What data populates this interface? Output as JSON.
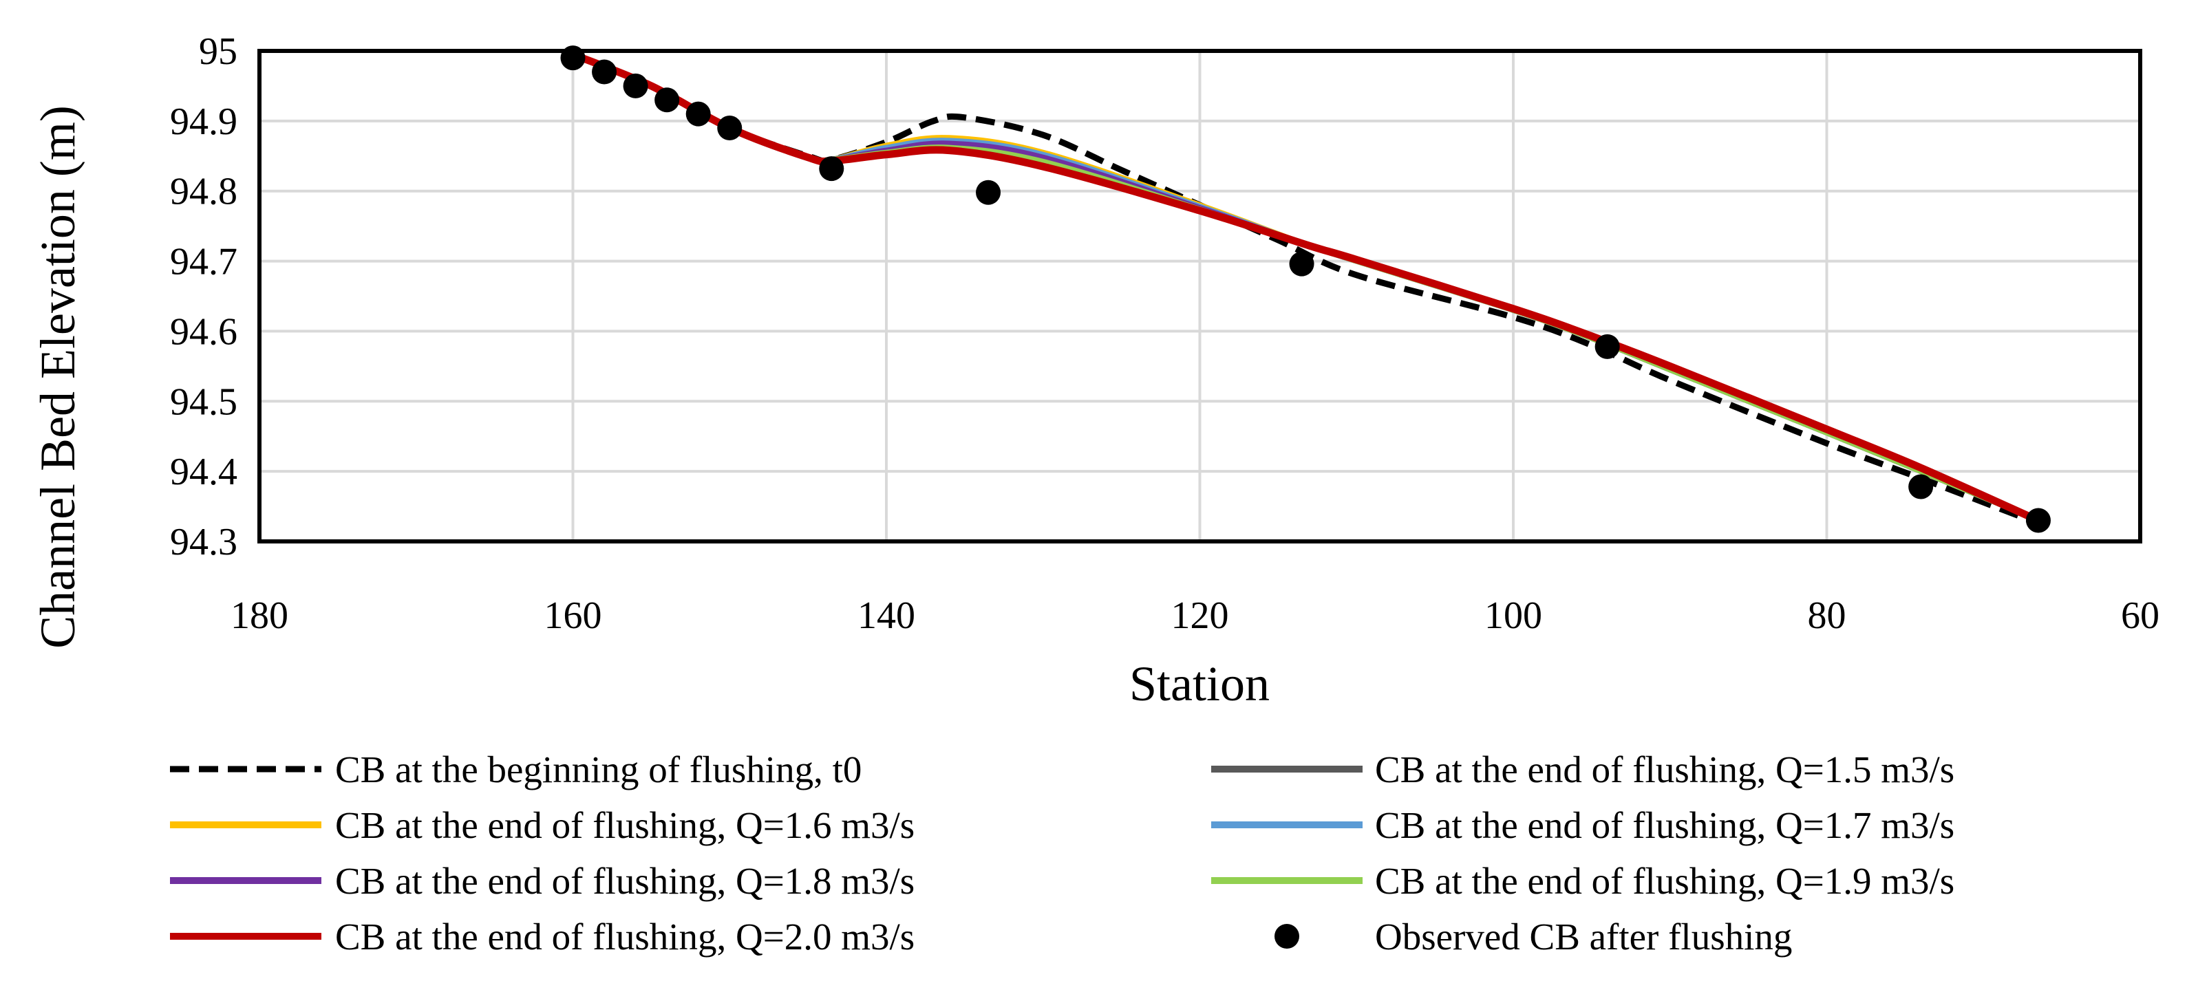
{
  "chart_data": {
    "type": "line",
    "title": "",
    "xlabel": "Station",
    "ylabel": "Channel Bed Elevation (m)",
    "xlim": [
      180,
      60
    ],
    "ylim": [
      94.3,
      95
    ],
    "x_ticks": [
      180,
      160,
      140,
      120,
      100,
      80,
      60
    ],
    "y_ticks": [
      "94.3",
      "94.4",
      "94.5",
      "94.6",
      "94.7",
      "94.8",
      "94.9",
      "95"
    ],
    "grid": true,
    "legend_position": "bottom",
    "series": [
      {
        "name": "CB at the beginning of flushing, t0",
        "style": "dashed",
        "color": "#000000",
        "points": [
          [
            160,
            94.995
          ],
          [
            155,
            94.95
          ],
          [
            150,
            94.89
          ],
          [
            145,
            94.85
          ],
          [
            143.5,
            94.845
          ],
          [
            140,
            94.87
          ],
          [
            137,
            94.9
          ],
          [
            135,
            94.905
          ],
          [
            130,
            94.88
          ],
          [
            125,
            94.83
          ],
          [
            120,
            94.78
          ],
          [
            115,
            94.73
          ],
          [
            110,
            94.68
          ],
          [
            100,
            94.62
          ],
          [
            95,
            94.58
          ],
          [
            90,
            94.53
          ],
          [
            80,
            94.44
          ],
          [
            74,
            94.39
          ],
          [
            67,
            94.33
          ]
        ]
      },
      {
        "name": "CB at the end of flushing, Q=1.5 m3/s",
        "style": "solid",
        "color": "#595959",
        "points": [
          [
            160,
            94.995
          ],
          [
            155,
            94.95
          ],
          [
            150,
            94.89
          ],
          [
            145,
            94.848
          ],
          [
            143.5,
            94.845
          ],
          [
            140,
            94.858
          ],
          [
            136,
            94.866
          ],
          [
            130,
            94.845
          ],
          [
            120,
            94.775
          ],
          [
            113,
            94.722
          ],
          [
            110,
            94.7
          ],
          [
            100,
            94.63
          ],
          [
            95,
            94.59
          ],
          [
            90,
            94.545
          ],
          [
            80,
            94.455
          ],
          [
            74,
            94.4
          ],
          [
            67,
            94.335
          ]
        ]
      },
      {
        "name": "CB at the end of flushing, Q=1.6 m3/s",
        "style": "solid",
        "color": "#FFC000",
        "points": [
          [
            160,
            94.995
          ],
          [
            155,
            94.95
          ],
          [
            150,
            94.89
          ],
          [
            145,
            94.848
          ],
          [
            143.5,
            94.845
          ],
          [
            140,
            94.865
          ],
          [
            136,
            94.876
          ],
          [
            130,
            94.855
          ],
          [
            120,
            94.78
          ],
          [
            113,
            94.722
          ],
          [
            110,
            94.7
          ],
          [
            100,
            94.63
          ],
          [
            95,
            94.59
          ],
          [
            90,
            94.545
          ],
          [
            80,
            94.455
          ],
          [
            74,
            94.4
          ],
          [
            67,
            94.335
          ]
        ]
      },
      {
        "name": "CB at the end of flushing, Q=1.7 m3/s",
        "style": "solid",
        "color": "#5B9BD5",
        "points": [
          [
            160,
            94.995
          ],
          [
            155,
            94.95
          ],
          [
            150,
            94.89
          ],
          [
            145,
            94.848
          ],
          [
            143.5,
            94.845
          ],
          [
            140,
            94.862
          ],
          [
            136,
            94.872
          ],
          [
            130,
            94.852
          ],
          [
            120,
            94.778
          ],
          [
            113,
            94.722
          ],
          [
            110,
            94.7
          ],
          [
            100,
            94.63
          ],
          [
            95,
            94.59
          ],
          [
            90,
            94.545
          ],
          [
            80,
            94.455
          ],
          [
            74,
            94.4
          ],
          [
            67,
            94.335
          ]
        ]
      },
      {
        "name": "CB at the end of flushing, Q=1.8 m3/s",
        "style": "solid",
        "color": "#7030A0",
        "points": [
          [
            160,
            94.995
          ],
          [
            155,
            94.95
          ],
          [
            150,
            94.89
          ],
          [
            145,
            94.848
          ],
          [
            143.5,
            94.845
          ],
          [
            140,
            94.858
          ],
          [
            136,
            94.868
          ],
          [
            130,
            94.848
          ],
          [
            120,
            94.776
          ],
          [
            113,
            94.722
          ],
          [
            110,
            94.7
          ],
          [
            100,
            94.63
          ],
          [
            95,
            94.59
          ],
          [
            90,
            94.545
          ],
          [
            80,
            94.455
          ],
          [
            74,
            94.4
          ],
          [
            67,
            94.335
          ]
        ]
      },
      {
        "name": "CB at the end of flushing, Q=1.9 m3/s",
        "style": "solid",
        "color": "#92D050",
        "points": [
          [
            160,
            94.995
          ],
          [
            155,
            94.95
          ],
          [
            150,
            94.89
          ],
          [
            145,
            94.848
          ],
          [
            143.5,
            94.845
          ],
          [
            140,
            94.855
          ],
          [
            136,
            94.862
          ],
          [
            130,
            94.842
          ],
          [
            120,
            94.774
          ],
          [
            113,
            94.722
          ],
          [
            110,
            94.7
          ],
          [
            100,
            94.63
          ],
          [
            95,
            94.59
          ],
          [
            90,
            94.545
          ],
          [
            80,
            94.455
          ],
          [
            74,
            94.4
          ],
          [
            67,
            94.335
          ]
        ]
      },
      {
        "name": "CB at the end of flushing, Q=2.0 m3/s",
        "style": "solid",
        "color": "#C00000",
        "points": [
          [
            160,
            94.995
          ],
          [
            155,
            94.95
          ],
          [
            150,
            94.89
          ],
          [
            145,
            94.848
          ],
          [
            143.5,
            94.843
          ],
          [
            140,
            94.852
          ],
          [
            136,
            94.858
          ],
          [
            130,
            94.835
          ],
          [
            120,
            94.772
          ],
          [
            113,
            94.722
          ],
          [
            110,
            94.702
          ],
          [
            100,
            94.632
          ],
          [
            95,
            94.593
          ],
          [
            90,
            94.55
          ],
          [
            80,
            94.46
          ],
          [
            74,
            94.405
          ],
          [
            67,
            94.335
          ]
        ]
      }
    ],
    "observed": {
      "name": "Observed CB after flushing",
      "color": "#000000",
      "points": [
        [
          160,
          94.99
        ],
        [
          158,
          94.97
        ],
        [
          156,
          94.95
        ],
        [
          154,
          94.93
        ],
        [
          152,
          94.91
        ],
        [
          150,
          94.89
        ],
        [
          143.5,
          94.832
        ],
        [
          133.5,
          94.798
        ],
        [
          113.5,
          94.696
        ],
        [
          94,
          94.578
        ],
        [
          74,
          94.378
        ],
        [
          66.5,
          94.33
        ]
      ]
    },
    "legend_order": [
      "CB at the beginning of flushing, t0",
      "CB at the end of flushing, Q=1.5 m3/s",
      "CB at the end of flushing, Q=1.6 m3/s",
      "CB at the end of flushing, Q=1.7 m3/s",
      "CB at the end of flushing, Q=1.8 m3/s",
      "CB at the end of flushing, Q=1.9 m3/s",
      "CB at the end of flushing, Q=2.0 m3/s",
      "Observed CB after flushing"
    ]
  }
}
